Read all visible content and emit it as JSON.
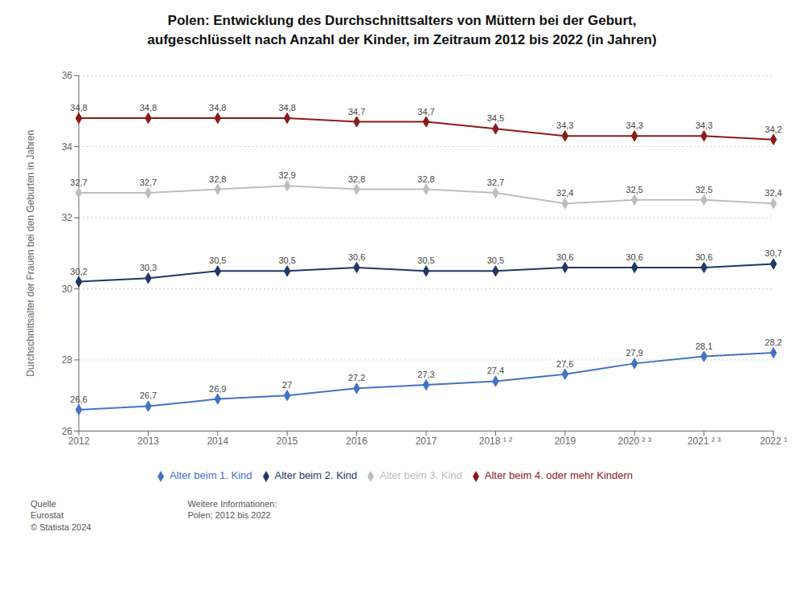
{
  "chart_data": {
    "type": "line",
    "title": "Polen: Entwicklung des Durchschnittsalters von Müttern bei der Geburt,\naufgeschlüsselt nach Anzahl der Kinder, im Zeitraum 2012 bis 2022 (in Jahren)",
    "y_label": "Durchschnittsalter der Frauen bei den Geburten in Jahren",
    "categories": [
      "2012",
      "2013",
      "2014",
      "2015",
      "2016",
      "2017",
      "2018 ¹ ²",
      "2019",
      "2020 ² ³",
      "2021 ² ³",
      "2022 ¹"
    ],
    "series": [
      {
        "name": "Alter beim 1. Kind",
        "color": "#4472c4",
        "marker": "diamond",
        "values": [
          26.6,
          26.7,
          26.9,
          27.0,
          27.2,
          27.3,
          27.4,
          27.6,
          27.9,
          28.1,
          28.2
        ],
        "value_labels": [
          "26,6",
          "26,7",
          "26,9",
          "27",
          "27,2",
          "27,3",
          "27,4",
          "27,6",
          "27,9",
          "28,1",
          "28,2"
        ]
      },
      {
        "name": "Alter beim 2. Kind",
        "color": "#1f3864",
        "marker": "diamond",
        "values": [
          30.2,
          30.3,
          30.5,
          30.5,
          30.6,
          30.5,
          30.5,
          30.6,
          30.6,
          30.6,
          30.7
        ],
        "value_labels": [
          "30,2",
          "30,3",
          "30,5",
          "30,5",
          "30,6",
          "30,5",
          "30,5",
          "30,6",
          "30,6",
          "30,6",
          "30,7"
        ]
      },
      {
        "name": "Alter beim 3. Kind",
        "color": "#bebebe",
        "marker": "diamond",
        "values": [
          32.7,
          32.7,
          32.8,
          32.9,
          32.8,
          32.8,
          32.7,
          32.4,
          32.5,
          32.5,
          32.4
        ],
        "value_labels": [
          "32,7",
          "32,7",
          "32,8",
          "32,9",
          "32,8",
          "32,8",
          "32,7",
          "32,4",
          "32,5",
          "32,5",
          "32,4"
        ]
      },
      {
        "name": "Alter beim 4. oder mehr Kindern",
        "color": "#8b1a1a",
        "marker": "diamond",
        "values": [
          34.8,
          34.8,
          34.8,
          34.8,
          34.7,
          34.7,
          34.5,
          34.3,
          34.3,
          34.3,
          34.2
        ],
        "value_labels": [
          "34,8",
          "34,8",
          "34,8",
          "34,8",
          "34,7",
          "34,7",
          "34,5",
          "34,3",
          "34,3",
          "34,3",
          "34,2"
        ]
      }
    ],
    "ylim": [
      26,
      36
    ],
    "yticks": [
      26,
      28,
      30,
      32,
      34,
      36
    ],
    "grid": true,
    "legend": "bottom",
    "data_labels": true,
    "annotations": [
      "Quelle\nEurostat\n© Statista 2024",
      "Weitere Informationen:\nPolen; 2012 bis 2022"
    ]
  }
}
